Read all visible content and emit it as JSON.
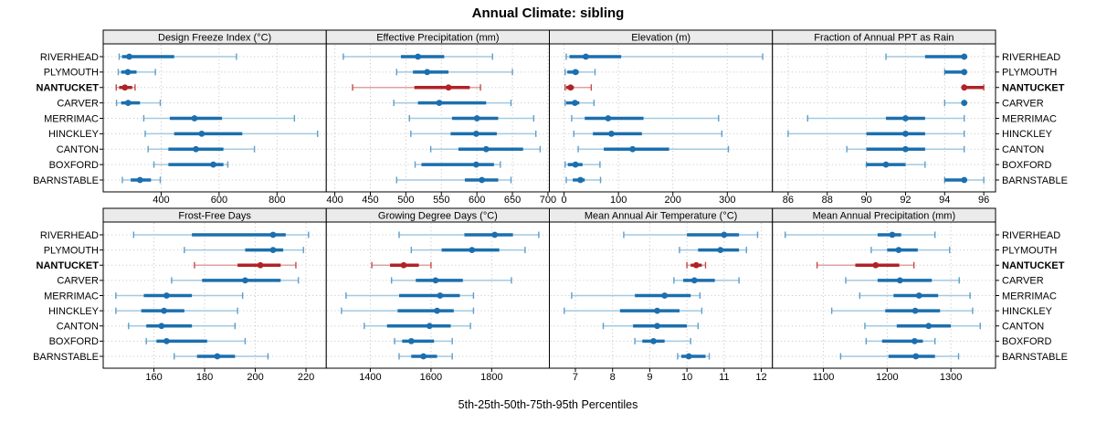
{
  "title": "Annual Climate: sibling",
  "footer_label": "5th-25th-50th-75th-95th Percentiles",
  "locations": [
    "RIVERHEAD",
    "PLYMOUTH",
    "NANTUCKET",
    "CARVER",
    "MERRIMAC",
    "HINCKLEY",
    "CANTON",
    "BOXFORD",
    "BARNSTABLE"
  ],
  "highlighted_location": "NANTUCKET",
  "percentile_levels": [
    "5th",
    "25th",
    "50th",
    "75th",
    "95th"
  ],
  "colors": {
    "series_dark": "#1b6fae",
    "series_light": "#a3c9e0",
    "series_cap": "#5d9ec9",
    "highlight_dark": "#b02226",
    "highlight_light": "#dfa0a0",
    "highlight_cap": "#c14b4b",
    "strip_bg": "#ebebeb",
    "panel_border": "#000000",
    "grid": "#cccccc"
  },
  "chart_data": [
    {
      "type": "dot-whisker",
      "title": "Design Freeze Index (°C)",
      "xlim": [
        200,
        970
      ],
      "ticks": [
        400,
        600,
        800
      ],
      "series": [
        {
          "name": "RIVERHEAD",
          "values": [
            255,
            265,
            290,
            445,
            660
          ]
        },
        {
          "name": "PLYMOUTH",
          "values": [
            252,
            262,
            285,
            315,
            380
          ]
        },
        {
          "name": "NANTUCKET",
          "values": [
            245,
            255,
            275,
            300,
            310
          ]
        },
        {
          "name": "CARVER",
          "values": [
            246,
            262,
            286,
            327,
            397
          ]
        },
        {
          "name": "MERRIMAC",
          "values": [
            340,
            430,
            515,
            610,
            860
          ]
        },
        {
          "name": "HINCKLEY",
          "values": [
            345,
            445,
            540,
            680,
            940
          ]
        },
        {
          "name": "CANTON",
          "values": [
            355,
            425,
            520,
            615,
            722
          ]
        },
        {
          "name": "BOXFORD",
          "values": [
            375,
            425,
            580,
            615,
            630
          ]
        },
        {
          "name": "BARNSTABLE",
          "values": [
            266,
            295,
            327,
            365,
            397
          ]
        }
      ]
    },
    {
      "type": "dot-whisker",
      "title": "Effective Precipitation (mm)",
      "xlim": [
        388,
        702
      ],
      "ticks": [
        400,
        450,
        500,
        550,
        600,
        650,
        700
      ],
      "series": [
        {
          "name": "RIVERHEAD",
          "values": [
            412,
            493,
            517,
            554,
            622
          ]
        },
        {
          "name": "PLYMOUTH",
          "values": [
            487,
            510,
            530,
            560,
            650
          ]
        },
        {
          "name": "NANTUCKET",
          "values": [
            425,
            512,
            560,
            590,
            605
          ]
        },
        {
          "name": "CARVER",
          "values": [
            483,
            517,
            547,
            613,
            648
          ]
        },
        {
          "name": "MERRIMAC",
          "values": [
            505,
            565,
            600,
            630,
            680
          ]
        },
        {
          "name": "HINCKLEY",
          "values": [
            507,
            563,
            599,
            628,
            683
          ]
        },
        {
          "name": "CANTON",
          "values": [
            535,
            574,
            613,
            665,
            689
          ]
        },
        {
          "name": "BOXFORD",
          "values": [
            513,
            522,
            599,
            624,
            633
          ]
        },
        {
          "name": "BARNSTABLE",
          "values": [
            487,
            583,
            607,
            630,
            648
          ]
        }
      ]
    },
    {
      "type": "dot-whisker",
      "title": "Elevation (m)",
      "xlim": [
        -27,
        383
      ],
      "ticks": [
        0,
        100,
        200,
        300
      ],
      "series": [
        {
          "name": "RIVERHEAD",
          "values": [
            4,
            10,
            40,
            105,
            365
          ]
        },
        {
          "name": "PLYMOUTH",
          "values": [
            2,
            6,
            21,
            27,
            57
          ]
        },
        {
          "name": "NANTUCKET",
          "values": [
            2,
            4,
            12,
            18,
            50
          ]
        },
        {
          "name": "CARVER",
          "values": [
            2,
            4,
            20,
            28,
            55
          ]
        },
        {
          "name": "MERRIMAC",
          "values": [
            14,
            38,
            81,
            146,
            284
          ]
        },
        {
          "name": "HINCKLEY",
          "values": [
            18,
            53,
            87,
            143,
            290
          ]
        },
        {
          "name": "CANTON",
          "values": [
            26,
            73,
            126,
            193,
            302
          ]
        },
        {
          "name": "BOXFORD",
          "values": [
            2,
            7,
            21,
            34,
            66
          ]
        },
        {
          "name": "BARNSTABLE",
          "values": [
            4,
            16,
            30,
            38,
            67
          ]
        }
      ]
    },
    {
      "type": "dot-whisker",
      "title": "Fraction of Annual PPT as Rain",
      "xlim": [
        85.2,
        96.6
      ],
      "ticks": [
        86,
        88,
        90,
        92,
        94,
        96
      ],
      "series": [
        {
          "name": "RIVERHEAD",
          "values": [
            91,
            93,
            95,
            95,
            95
          ]
        },
        {
          "name": "PLYMOUTH",
          "values": [
            94,
            94,
            95,
            95,
            95
          ]
        },
        {
          "name": "NANTUCKET",
          "values": [
            95,
            95,
            95,
            96,
            96
          ]
        },
        {
          "name": "CARVER",
          "values": [
            94,
            95,
            95,
            95,
            95
          ]
        },
        {
          "name": "MERRIMAC",
          "values": [
            87,
            91,
            92,
            93,
            95
          ]
        },
        {
          "name": "HINCKLEY",
          "values": [
            86,
            90,
            92,
            93,
            95
          ]
        },
        {
          "name": "CANTON",
          "values": [
            89,
            90,
            92,
            93,
            95
          ]
        },
        {
          "name": "BOXFORD",
          "values": [
            90,
            90,
            91,
            92,
            93
          ]
        },
        {
          "name": "BARNSTABLE",
          "values": [
            94,
            94,
            95,
            95,
            96
          ]
        }
      ]
    },
    {
      "type": "dot-whisker",
      "title": "Frost-Free Days",
      "xlim": [
        140,
        228
      ],
      "ticks": [
        160,
        180,
        200,
        220
      ],
      "series": [
        {
          "name": "RIVERHEAD",
          "values": [
            152,
            175,
            207,
            212,
            221
          ]
        },
        {
          "name": "PLYMOUTH",
          "values": [
            172,
            196,
            207,
            211,
            219
          ]
        },
        {
          "name": "NANTUCKET",
          "values": [
            176,
            193,
            202,
            210,
            216
          ]
        },
        {
          "name": "CARVER",
          "values": [
            167,
            179,
            196,
            210,
            217
          ]
        },
        {
          "name": "MERRIMAC",
          "values": [
            145,
            156,
            165,
            175,
            195
          ]
        },
        {
          "name": "HINCKLEY",
          "values": [
            145,
            155,
            164,
            172,
            193
          ]
        },
        {
          "name": "CANTON",
          "values": [
            150,
            157,
            163,
            175,
            192
          ]
        },
        {
          "name": "BOXFORD",
          "values": [
            157,
            161,
            165,
            181,
            196
          ]
        },
        {
          "name": "BARNSTABLE",
          "values": [
            168,
            177,
            185,
            192,
            205
          ]
        }
      ]
    },
    {
      "type": "dot-whisker",
      "title": "Growing Degree Days (°C)",
      "xlim": [
        1255,
        1990
      ],
      "ticks": [
        1400,
        1600,
        1800
      ],
      "series": [
        {
          "name": "RIVERHEAD",
          "values": [
            1495,
            1710,
            1810,
            1870,
            1955
          ]
        },
        {
          "name": "PLYMOUTH",
          "values": [
            1535,
            1635,
            1735,
            1825,
            1910
          ]
        },
        {
          "name": "NANTUCKET",
          "values": [
            1405,
            1465,
            1510,
            1560,
            1600
          ]
        },
        {
          "name": "CARVER",
          "values": [
            1470,
            1550,
            1615,
            1705,
            1865
          ]
        },
        {
          "name": "MERRIMAC",
          "values": [
            1320,
            1495,
            1630,
            1695,
            1740
          ]
        },
        {
          "name": "HINCKLEY",
          "values": [
            1305,
            1490,
            1620,
            1675,
            1740
          ]
        },
        {
          "name": "CANTON",
          "values": [
            1380,
            1455,
            1595,
            1665,
            1730
          ]
        },
        {
          "name": "BOXFORD",
          "values": [
            1480,
            1505,
            1535,
            1610,
            1670
          ]
        },
        {
          "name": "BARNSTABLE",
          "values": [
            1495,
            1535,
            1575,
            1620,
            1670
          ]
        }
      ]
    },
    {
      "type": "dot-whisker",
      "title": "Mean Annual Air Temperature (°C)",
      "xlim": [
        6.3,
        12.3
      ],
      "ticks": [
        7,
        8,
        9,
        10,
        11,
        12
      ],
      "series": [
        {
          "name": "RIVERHEAD",
          "values": [
            8.3,
            10.0,
            11.0,
            11.4,
            11.9
          ]
        },
        {
          "name": "PLYMOUTH",
          "values": [
            9.8,
            10.3,
            10.9,
            11.4,
            11.6
          ]
        },
        {
          "name": "NANTUCKET",
          "values": [
            10.0,
            10.1,
            10.25,
            10.4,
            10.5
          ]
        },
        {
          "name": "CARVER",
          "values": [
            9.65,
            9.9,
            10.2,
            10.75,
            11.4
          ]
        },
        {
          "name": "MERRIMAC",
          "values": [
            6.9,
            8.6,
            9.4,
            10.1,
            10.35
          ]
        },
        {
          "name": "HINCKLEY",
          "values": [
            6.7,
            8.2,
            9.2,
            9.8,
            10.4
          ]
        },
        {
          "name": "CANTON",
          "values": [
            7.75,
            8.55,
            9.2,
            10.0,
            10.3
          ]
        },
        {
          "name": "BOXFORD",
          "values": [
            8.6,
            8.8,
            9.1,
            9.4,
            10.1
          ]
        },
        {
          "name": "BARNSTABLE",
          "values": [
            9.75,
            9.85,
            10.05,
            10.5,
            10.6
          ]
        }
      ]
    },
    {
      "type": "dot-whisker",
      "title": "Mean Annual Precipitation (mm)",
      "xlim": [
        1020,
        1370
      ],
      "ticks": [
        1100,
        1200,
        1300
      ],
      "series": [
        {
          "name": "RIVERHEAD",
          "values": [
            1040,
            1185,
            1208,
            1222,
            1275
          ]
        },
        {
          "name": "PLYMOUTH",
          "values": [
            1175,
            1200,
            1218,
            1248,
            1298
          ]
        },
        {
          "name": "NANTUCKET",
          "values": [
            1090,
            1150,
            1182,
            1219,
            1242
          ]
        },
        {
          "name": "CARVER",
          "values": [
            1135,
            1185,
            1220,
            1270,
            1313
          ]
        },
        {
          "name": "MERRIMAC",
          "values": [
            1157,
            1210,
            1250,
            1280,
            1330
          ]
        },
        {
          "name": "HINCKLEY",
          "values": [
            1113,
            1197,
            1244,
            1283,
            1334
          ]
        },
        {
          "name": "CANTON",
          "values": [
            1165,
            1215,
            1265,
            1300,
            1346
          ]
        },
        {
          "name": "BOXFORD",
          "values": [
            1167,
            1192,
            1243,
            1256,
            1275
          ]
        },
        {
          "name": "BARNSTABLE",
          "values": [
            1127,
            1202,
            1245,
            1275,
            1312
          ]
        }
      ]
    }
  ]
}
